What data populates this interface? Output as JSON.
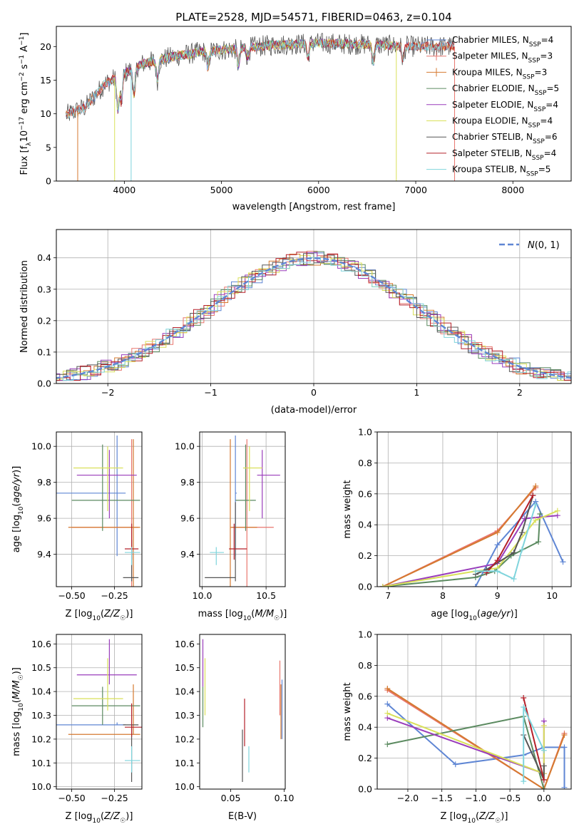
{
  "figure": {
    "title": "PLATE=2528, MJD=54571, FIBERID=0463, z=0.104"
  },
  "colors": {
    "Chabrier MILES": "#5f86d4",
    "Salpeter MILES": "#e8766e",
    "Kroupa MILES": "#d57a30",
    "Chabrier ELODIE": "#5b8a60",
    "Salpeter ELODIE": "#9a3dbb",
    "Kroupa ELODIE": "#d9e05a",
    "Chabrier STELIB": "#555555",
    "Salpeter STELIB": "#b5202a",
    "Kroupa STELIB": "#7fd4dc"
  },
  "chart_data": [
    {
      "type": "line",
      "panel": "spectrum",
      "xlabel": "wavelength [Angstrom, rest frame]",
      "ylabel": "Flux [f_λ 10^-17 erg cm^-2 s^-1 A^-1]",
      "xlim": [
        3300,
        8600
      ],
      "ylim": [
        0,
        23
      ],
      "xticks": [
        4000,
        5000,
        6000,
        7000,
        8000
      ],
      "yticks": [
        0,
        5,
        10,
        15,
        20
      ],
      "grid": false,
      "legend_position": "right",
      "series": [
        {
          "name": "Chabrier MILES, N_SSP=4"
        },
        {
          "name": "Salpeter MILES, N_SSP=3"
        },
        {
          "name": "Kroupa MILES, N_SSP=3"
        },
        {
          "name": "Chabrier ELODIE, N_SSP=5"
        },
        {
          "name": "Salpeter ELODIE, N_SSP=4"
        },
        {
          "name": "Kroupa ELODIE, N_SSP=4"
        },
        {
          "name": "Chabrier STELIB, N_SSP=6"
        },
        {
          "name": "Salpeter STELIB, N_SSP=4"
        },
        {
          "name": "Kroupa STELIB, N_SSP=5"
        }
      ],
      "continuum": {
        "x": [
          3400,
          3600,
          3800,
          4000,
          4200,
          4500,
          4800,
          5100,
          5500,
          6000,
          6500,
          7000,
          7400
        ],
        "y": [
          9.8,
          11,
          14.5,
          16,
          17.5,
          18.5,
          19.2,
          19.6,
          20.2,
          20.5,
          20.3,
          20.0,
          20.0
        ]
      }
    },
    {
      "type": "line",
      "panel": "residual-histogram",
      "xlabel": "(data-model)/error",
      "ylabel": "Normed distribution",
      "xlim": [
        -2.5,
        2.5
      ],
      "ylim": [
        0,
        0.49
      ],
      "xticks": [
        -2,
        -1,
        0,
        1,
        2
      ],
      "yticks": [
        0.0,
        0.1,
        0.2,
        0.3,
        0.4
      ],
      "grid": true,
      "legend_position": "top-right",
      "legend": [
        "N(0,1)"
      ],
      "reference_curve": "standard normal, dashed"
    },
    {
      "type": "scatter",
      "panel": "age-vs-Z",
      "xlabel": "Z [log10(Z/Z☉)]",
      "ylabel": "age [log10(age/yr)]",
      "xlim": [
        -0.59,
        -0.09
      ],
      "ylim": [
        9.22,
        10.08
      ],
      "xticks": [
        -0.5,
        -0.25
      ],
      "yticks": [
        9.4,
        9.6,
        9.8,
        10.0
      ],
      "grid": true,
      "points": [
        {
          "model": "Chabrier MILES",
          "x": -0.235,
          "y": 9.74,
          "xerr": [
            0.37,
            0.05
          ],
          "yerr": [
            0.35,
            0.32
          ]
        },
        {
          "model": "Salpeter MILES",
          "x": -0.15,
          "y": 9.55,
          "xerr": [
            0.35,
            0.04
          ],
          "yerr": [
            0.35,
            0.49
          ]
        },
        {
          "model": "Kroupa MILES",
          "x": -0.14,
          "y": 9.55,
          "xerr": [
            0.38,
            0.04
          ],
          "yerr": [
            0.35,
            0.49
          ]
        },
        {
          "model": "Chabrier ELODIE",
          "x": -0.32,
          "y": 9.7,
          "xerr": [
            0.18,
            0.22
          ],
          "yerr": [
            0.17,
            0.31
          ]
        },
        {
          "model": "Salpeter ELODIE",
          "x": -0.28,
          "y": 9.84,
          "xerr": [
            0.19,
            0.16
          ],
          "yerr": [
            0.24,
            0.14
          ]
        },
        {
          "model": "Kroupa ELODIE",
          "x": -0.29,
          "y": 9.88,
          "xerr": [
            0.2,
            0.09
          ],
          "yerr": [
            0.24,
            0.12
          ]
        },
        {
          "model": "Chabrier STELIB",
          "x": -0.15,
          "y": 9.27,
          "xerr": [
            0.05,
            0.04
          ],
          "yerr": [
            0.02,
            0.21
          ]
        },
        {
          "model": "Salpeter STELIB",
          "x": -0.15,
          "y": 9.43,
          "xerr": [
            0.04,
            0.04
          ],
          "yerr": [
            0.06,
            0.14
          ]
        },
        {
          "model": "Kroupa STELIB",
          "x": -0.15,
          "y": 9.41,
          "xerr": [
            0.04,
            0.05
          ],
          "yerr": [
            0.07,
            0.03
          ]
        }
      ]
    },
    {
      "type": "scatter",
      "panel": "age-vs-mass",
      "xlabel": "mass [log10(M/M☉)]",
      "ylabel": "",
      "xlim": [
        9.98,
        10.65
      ],
      "ylim": [
        9.22,
        10.08
      ],
      "xticks": [
        10.0,
        10.5
      ],
      "yticks": [
        9.4,
        9.6,
        9.8,
        10.0
      ],
      "grid": true,
      "points": [
        {
          "model": "Chabrier MILES",
          "x": 10.26,
          "y": 9.74,
          "xerr": [
            0.0,
            0.01
          ],
          "yerr": [
            0.35,
            0.32
          ]
        },
        {
          "model": "Salpeter MILES",
          "x": 10.35,
          "y": 9.55,
          "xerr": [
            0.12,
            0.21
          ],
          "yerr": [
            0.35,
            0.49
          ]
        },
        {
          "model": "Kroupa MILES",
          "x": 10.22,
          "y": 9.55,
          "xerr": [
            0.0,
            0.21
          ],
          "yerr": [
            0.35,
            0.49
          ]
        },
        {
          "model": "Chabrier ELODIE",
          "x": 10.34,
          "y": 9.7,
          "xerr": [
            0.08,
            0.08
          ],
          "yerr": [
            0.17,
            0.31
          ]
        },
        {
          "model": "Salpeter ELODIE",
          "x": 10.47,
          "y": 9.84,
          "xerr": [
            0.04,
            0.14
          ],
          "yerr": [
            0.24,
            0.14
          ]
        },
        {
          "model": "Kroupa ELODIE",
          "x": 10.37,
          "y": 9.88,
          "xerr": [
            0.05,
            0.1
          ],
          "yerr": [
            0.24,
            0.12
          ]
        },
        {
          "model": "Chabrier STELIB",
          "x": 10.26,
          "y": 9.27,
          "xerr": [
            0.24,
            0.0
          ],
          "yerr": [
            0.02,
            0.42
          ]
        },
        {
          "model": "Salpeter STELIB",
          "x": 10.25,
          "y": 9.43,
          "xerr": [
            0.04,
            0.1
          ],
          "yerr": [
            0.06,
            0.14
          ]
        },
        {
          "model": "Kroupa STELIB",
          "x": 10.11,
          "y": 9.41,
          "xerr": [
            0.05,
            0.06
          ],
          "yerr": [
            0.07,
            0.03
          ]
        }
      ]
    },
    {
      "type": "line",
      "panel": "mass-weight-vs-age",
      "xlabel": "age [log10(age/yr)]",
      "ylabel": "mass weight",
      "xlim": [
        6.8,
        10.35
      ],
      "ylim": [
        0,
        1.0
      ],
      "xticks": [
        7,
        8,
        9,
        10
      ],
      "yticks": [
        0.0,
        0.2,
        0.4,
        0.6,
        0.8,
        1.0
      ],
      "grid": true,
      "series": [
        {
          "model": "Chabrier MILES",
          "x": [
            8.6,
            9.0,
            9.7,
            10.2
          ],
          "y": [
            0.0,
            0.27,
            0.55,
            0.16
          ]
        },
        {
          "model": "Salpeter MILES",
          "x": [
            6.9,
            9.0,
            9.7
          ],
          "y": [
            0.0,
            0.36,
            0.64
          ]
        },
        {
          "model": "Kroupa MILES",
          "x": [
            6.9,
            9.0,
            9.7
          ],
          "y": [
            0.0,
            0.35,
            0.65
          ]
        },
        {
          "model": "Chabrier ELODIE",
          "x": [
            6.9,
            8.6,
            8.95,
            9.25,
            9.75,
            9.78
          ],
          "y": [
            0.0,
            0.06,
            0.1,
            0.2,
            0.29,
            0.47
          ]
        },
        {
          "model": "Salpeter ELODIE",
          "x": [
            6.9,
            9.0,
            9.5,
            10.1
          ],
          "y": [
            0.0,
            0.15,
            0.44,
            0.46
          ]
        },
        {
          "model": "Kroupa ELODIE",
          "x": [
            6.9,
            8.6,
            9.0,
            9.7,
            10.1
          ],
          "y": [
            0.0,
            0.1,
            0.12,
            0.43,
            0.49
          ]
        },
        {
          "model": "Chabrier STELIB",
          "x": [
            8.6,
            8.8,
            9.3,
            9.45,
            9.65
          ],
          "y": [
            0.08,
            0.11,
            0.22,
            0.35,
            0.59
          ]
        },
        {
          "model": "Salpeter STELIB",
          "x": [
            8.8,
            9.0,
            9.65
          ],
          "y": [
            0.09,
            0.17,
            0.59
          ]
        },
        {
          "model": "Kroupa STELIB",
          "x": [
            8.6,
            9.0,
            9.3,
            9.45,
            9.7
          ],
          "y": [
            0.1,
            0.1,
            0.05,
            0.24,
            0.53
          ]
        }
      ]
    },
    {
      "type": "scatter",
      "panel": "mass-vs-Z",
      "xlabel": "Z [log10(Z/Z☉)]",
      "ylabel": "mass [log10(M/M☉)]",
      "xlim": [
        -0.59,
        -0.09
      ],
      "ylim": [
        9.99,
        10.64
      ],
      "xticks": [
        -0.5,
        -0.25
      ],
      "yticks": [
        10.0,
        10.1,
        10.2,
        10.3,
        10.4,
        10.5,
        10.6
      ],
      "grid": true,
      "points": [
        {
          "model": "Chabrier MILES",
          "x": -0.235,
          "y": 10.26,
          "xerr": [
            0.37,
            0.05
          ],
          "yerr": [
            0.0,
            0.01
          ]
        },
        {
          "model": "Kroupa MILES",
          "x": -0.14,
          "y": 10.22,
          "xerr": [
            0.38,
            0.04
          ],
          "yerr": [
            0.0,
            0.21
          ]
        },
        {
          "model": "Chabrier ELODIE",
          "x": -0.32,
          "y": 10.34,
          "xerr": [
            0.18,
            0.22
          ],
          "yerr": [
            0.08,
            0.08
          ]
        },
        {
          "model": "Salpeter ELODIE",
          "x": -0.28,
          "y": 10.47,
          "xerr": [
            0.19,
            0.16
          ],
          "yerr": [
            0.04,
            0.15
          ]
        },
        {
          "model": "Kroupa ELODIE",
          "x": -0.29,
          "y": 10.37,
          "xerr": [
            0.2,
            0.09
          ],
          "yerr": [
            0.05,
            0.17
          ]
        },
        {
          "model": "Chabrier STELIB",
          "x": -0.15,
          "y": 10.26,
          "xerr": [
            0.05,
            0.04
          ],
          "yerr": [
            0.24,
            0.0
          ]
        },
        {
          "model": "Salpeter STELIB",
          "x": -0.15,
          "y": 10.25,
          "xerr": [
            0.04,
            0.1
          ],
          "yerr": [
            0.04,
            0.1
          ]
        },
        {
          "model": "Kroupa STELIB",
          "x": -0.15,
          "y": 10.11,
          "xerr": [
            0.04,
            0.05
          ],
          "yerr": [
            0.05,
            0.06
          ]
        }
      ]
    },
    {
      "type": "scatter",
      "panel": "mass-vs-EBV",
      "xlabel": "E(B-V)",
      "ylabel": "",
      "xlim": [
        0.021,
        0.101
      ],
      "ylim": [
        9.99,
        10.64
      ],
      "xticks": [
        0.05,
        0.1
      ],
      "yticks": [
        10.0,
        10.1,
        10.2,
        10.3,
        10.4,
        10.5,
        10.6
      ],
      "grid": false,
      "points": [
        {
          "model": "Chabrier ELODIE",
          "x": 0.024,
          "y": 10.34,
          "yerr": [
            0.09,
            0.08
          ]
        },
        {
          "model": "Salpeter ELODIE",
          "x": 0.024,
          "y": 10.47,
          "yerr": [
            0.05,
            0.15
          ]
        },
        {
          "model": "Kroupa ELODIE",
          "x": 0.026,
          "y": 10.37,
          "yerr": [
            0.07,
            0.17
          ]
        },
        {
          "model": "Chabrier STELIB",
          "x": 0.061,
          "y": 10.12,
          "yerr": [
            0.1,
            0.12
          ]
        },
        {
          "model": "Salpeter STELIB",
          "x": 0.063,
          "y": 10.27,
          "yerr": [
            0.1,
            0.1
          ]
        },
        {
          "model": "Kroupa STELIB",
          "x": 0.067,
          "y": 10.11,
          "yerr": [
            0.05,
            0.06
          ]
        },
        {
          "model": "Salpeter MILES",
          "x": 0.096,
          "y": 10.39,
          "yerr": [
            0.09,
            0.14
          ]
        },
        {
          "model": "Kroupa MILES",
          "x": 0.097,
          "y": 10.32,
          "yerr": [
            0.12,
            0.11
          ]
        },
        {
          "model": "Chabrier MILES",
          "x": 0.098,
          "y": 10.3,
          "yerr": [
            0.1,
            0.15
          ]
        }
      ]
    },
    {
      "type": "line",
      "panel": "mass-weight-vs-Z",
      "xlabel": "Z [log10(Z/Z☉)]",
      "ylabel": "mass weight",
      "xlim": [
        -2.45,
        0.4
      ],
      "ylim": [
        0,
        1.0
      ],
      "xticks": [
        -2.0,
        -1.5,
        -1.0,
        -0.5,
        0.0
      ],
      "yticks": [
        0.0,
        0.2,
        0.4,
        0.6,
        0.8,
        1.0
      ],
      "grid": true,
      "series": [
        {
          "model": "Chabrier MILES",
          "x": [
            -2.3,
            -1.3,
            -0.3,
            0.0,
            0.3,
            0.3
          ],
          "y": [
            0.55,
            0.16,
            0.22,
            0.27,
            0.27,
            0.01
          ]
        },
        {
          "model": "Salpeter MILES",
          "x": [
            -2.3,
            0.0,
            0.3
          ],
          "y": [
            0.64,
            0.0,
            0.36
          ]
        },
        {
          "model": "Kroupa MILES",
          "x": [
            -2.3,
            0.0,
            0.3
          ],
          "y": [
            0.65,
            0.0,
            0.35
          ]
        },
        {
          "model": "Chabrier ELODIE",
          "x": [
            -2.3,
            -0.3,
            0.0
          ],
          "y": [
            0.29,
            0.47,
            0.0
          ]
        },
        {
          "model": "Salpeter ELODIE",
          "x": [
            -2.3,
            0.0,
            0.0
          ],
          "y": [
            0.46,
            0.1,
            0.44
          ]
        },
        {
          "model": "Kroupa ELODIE",
          "x": [
            -2.3,
            0.0,
            0.0
          ],
          "y": [
            0.49,
            0.1,
            0.41
          ]
        },
        {
          "model": "Chabrier STELIB",
          "x": [
            -0.3,
            0.0,
            0.0
          ],
          "y": [
            0.35,
            0.06,
            0.15
          ]
        },
        {
          "model": "Salpeter STELIB",
          "x": [
            -0.3,
            0.0
          ],
          "y": [
            0.59,
            0.06
          ]
        },
        {
          "model": "Kroupa STELIB",
          "x": [
            -0.3,
            -0.3,
            0.0
          ],
          "y": [
            0.05,
            0.53,
            0.25
          ]
        }
      ]
    }
  ]
}
